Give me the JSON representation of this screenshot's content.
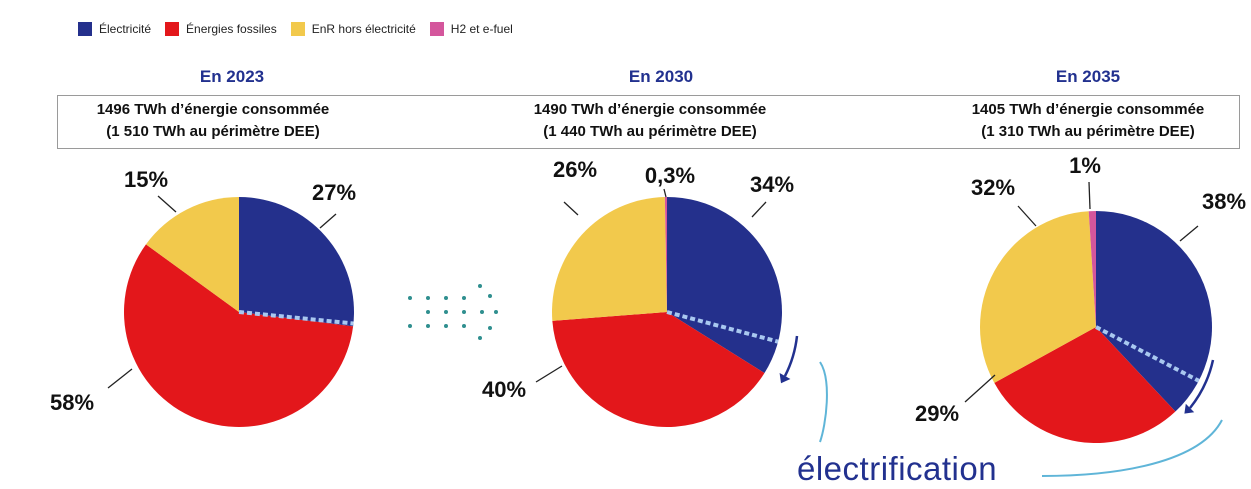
{
  "legend": [
    {
      "label": "Électricité",
      "color": "#24308c"
    },
    {
      "label": "Énergies fossiles",
      "color": "#e3171b"
    },
    {
      "label": "EnR hors électricité",
      "color": "#f2c94c"
    },
    {
      "label": "H2 et e-fuel",
      "color": "#d4569c"
    }
  ],
  "chart_data": [
    {
      "type": "pie",
      "title": "En 2023",
      "subtitle_line1": "1496 TWh d’énergie consommée",
      "subtitle_line2": "(1 510 TWh au périmètre DEE)",
      "slices": [
        {
          "name": "Électricité",
          "value": 27,
          "label": "27%"
        },
        {
          "name": "Énergies fossiles",
          "value": 58,
          "label": "58%"
        },
        {
          "name": "EnR hors électricité",
          "value": 15,
          "label": "15%"
        }
      ]
    },
    {
      "type": "pie",
      "title": "En 2030",
      "subtitle_line1": "1490 TWh d’énergie consommée",
      "subtitle_line2": "(1 440 TWh au périmètre DEE)",
      "slices": [
        {
          "name": "Électricité",
          "value": 34,
          "label": "34%"
        },
        {
          "name": "Énergies fossiles",
          "value": 40,
          "label": "40%"
        },
        {
          "name": "EnR hors électricité",
          "value": 26,
          "label": "26%"
        },
        {
          "name": "H2 et e-fuel",
          "value": 0.3,
          "label": "0,3%"
        }
      ]
    },
    {
      "type": "pie",
      "title": "En 2035",
      "subtitle_line1": "1405 TWh d’énergie consommée",
      "subtitle_line2": "(1 310 TWh au périmètre DEE)",
      "slices": [
        {
          "name": "Électricité",
          "value": 38,
          "label": "38%"
        },
        {
          "name": "Énergies fossiles",
          "value": 29,
          "label": "29%"
        },
        {
          "name": "EnR hors électricité",
          "value": 32,
          "label": "32%"
        },
        {
          "name": "H2 et e-fuel",
          "value": 1,
          "label": "1%"
        }
      ]
    }
  ],
  "annotation": {
    "text": "électrification"
  }
}
